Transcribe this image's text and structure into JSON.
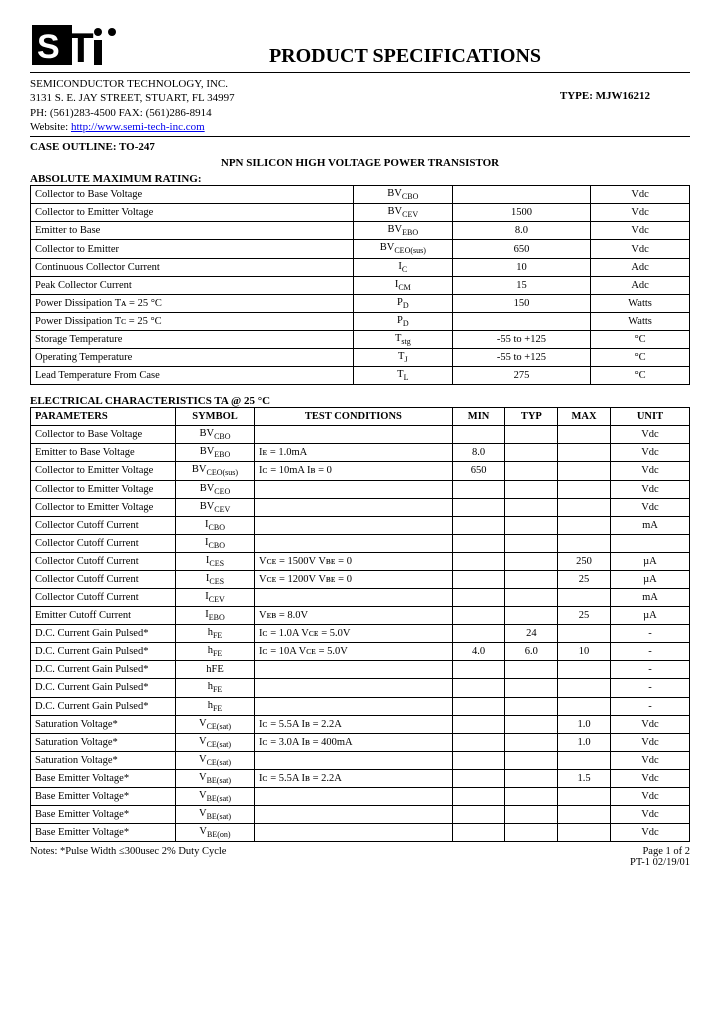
{
  "header": {
    "title": "PRODUCT SPECIFICATIONS",
    "company": "SEMICONDUCTOR TECHNOLOGY, INC.",
    "address": "3131 S. E. JAY STREET, STUART, FL  34997",
    "phone": "PH: (561)283-4500  FAX: (561)286-8914",
    "website_label": "Website:  ",
    "website_url": "http://www.semi-tech-inc.com",
    "type_label": "TYPE: ",
    "type_value": "MJW16212"
  },
  "case_outline_label": "CASE OUTLINE:   TO-247",
  "subtitle": "NPN SILICON HIGH VOLTAGE POWER TRANSISTOR",
  "amr": {
    "heading": "ABSOLUTE MAXIMUM RATING:",
    "rows": [
      {
        "p": "Collector to Base Voltage",
        "s": "BV",
        "sub": "CBO",
        "v": "",
        "u": "Vdc"
      },
      {
        "p": "Collector to Emitter Voltage",
        "s": "BV",
        "sub": "CEV",
        "v": "1500",
        "u": "Vdc"
      },
      {
        "p": "Emitter to Base",
        "s": "BV",
        "sub": "EBO",
        "v": "8.0",
        "u": "Vdc"
      },
      {
        "p": "Collector to Emitter",
        "s": "BV",
        "sub": "CEO(sus)",
        "v": "650",
        "u": "Vdc"
      },
      {
        "p": "Continuous Collector Current",
        "s": "I",
        "sub": "C",
        "v": "10",
        "u": "Adc"
      },
      {
        "p": "Peak Collector Current",
        "s": "I",
        "sub": "CM",
        "v": "15",
        "u": "Adc"
      },
      {
        "p": "Power Dissipation Tᴀ = 25 °C",
        "s": "P",
        "sub": "D",
        "v": "150",
        "u": "Watts"
      },
      {
        "p": "Power Dissipation Tᴄ = 25 °C",
        "s": "P",
        "sub": "D",
        "v": "",
        "u": "Watts"
      },
      {
        "p": "Storage Temperature",
        "s": "T",
        "sub": "stg",
        "v": "-55 to +125",
        "u": "°C"
      },
      {
        "p": "Operating Temperature",
        "s": "T",
        "sub": "J",
        "v": "-55 to +125",
        "u": "°C"
      },
      {
        "p": "Lead Temperature From Case",
        "s": "T",
        "sub": "L",
        "v": "275",
        "u": "°C"
      }
    ]
  },
  "ec": {
    "heading": "ELECTRICAL CHARACTERISTICS     TA @ 25 °C",
    "headers": [
      "PARAMETERS",
      "SYMBOL",
      "TEST CONDITIONS",
      "MIN",
      "TYP",
      "MAX",
      "UNIT"
    ],
    "rows": [
      {
        "p": "Collector to Base Voltage",
        "s": "BV",
        "sub": "CBO",
        "tc": "",
        "min": "",
        "typ": "",
        "max": "",
        "u": "Vdc"
      },
      {
        "p": "Emitter to Base Voltage",
        "s": "BV",
        "sub": "EBO",
        "tc": "Iᴇ = 1.0mA",
        "min": "8.0",
        "typ": "",
        "max": "",
        "u": "Vdc"
      },
      {
        "p": "Collector to Emitter Voltage",
        "s": "BV",
        "sub": "CEO(sus)",
        "tc": "Iᴄ = 10mA  Iʙ = 0",
        "min": "650",
        "typ": "",
        "max": "",
        "u": "Vdc"
      },
      {
        "p": "Collector to Emitter Voltage",
        "s": "BV",
        "sub": "CEO",
        "tc": "",
        "min": "",
        "typ": "",
        "max": "",
        "u": "Vdc"
      },
      {
        "p": "Collector to Emitter Voltage",
        "s": "BV",
        "sub": "CEV",
        "tc": "",
        "min": "",
        "typ": "",
        "max": "",
        "u": "Vdc"
      },
      {
        "p": "Collector Cutoff Current",
        "s": "I",
        "sub": "CBO",
        "tc": "",
        "min": "",
        "typ": "",
        "max": "",
        "u": "mA"
      },
      {
        "p": "Collector Cutoff Current",
        "s": "I",
        "sub": "CBO",
        "tc": "",
        "min": "",
        "typ": "",
        "max": "",
        "u": ""
      },
      {
        "p": "Collector Cutoff Current",
        "s": "I",
        "sub": "CES",
        "tc": "Vᴄᴇ = 1500V  Vʙᴇ = 0",
        "min": "",
        "typ": "",
        "max": "250",
        "u": "µA"
      },
      {
        "p": "Collector Cutoff Current",
        "s": "I",
        "sub": "CES",
        "tc": "Vᴄᴇ = 1200V  Vʙᴇ = 0",
        "min": "",
        "typ": "",
        "max": "25",
        "u": "µA"
      },
      {
        "p": "Collector Cutoff Current",
        "s": "I",
        "sub": "CEV",
        "tc": "",
        "min": "",
        "typ": "",
        "max": "",
        "u": "mA"
      },
      {
        "p": "Emitter Cutoff Current",
        "s": "I",
        "sub": "EBO",
        "tc": "Vᴇʙ = 8.0V",
        "min": "",
        "typ": "",
        "max": "25",
        "u": "µA"
      },
      {
        "p": "D.C. Current Gain Pulsed*",
        "s": "h",
        "sub": "FE",
        "tc": "Iᴄ = 1.0A  Vᴄᴇ = 5.0V",
        "min": "",
        "typ": "24",
        "max": "",
        "u": "-"
      },
      {
        "p": "D.C. Current Gain Pulsed*",
        "s": "h",
        "sub": "FE",
        "tc": "Iᴄ = 10A  Vᴄᴇ = 5.0V",
        "min": "4.0",
        "typ": "6.0",
        "max": "10",
        "u": "-"
      },
      {
        "p": "D.C. Current Gain Pulsed*",
        "s": "hFE",
        "sub": "",
        "tc": "",
        "min": "",
        "typ": "",
        "max": "",
        "u": "-"
      },
      {
        "p": "D.C. Current Gain Pulsed*",
        "s": "h",
        "sub": "FE",
        "tc": "",
        "min": "",
        "typ": "",
        "max": "",
        "u": "-"
      },
      {
        "p": "D.C. Current Gain Pulsed*",
        "s": "h",
        "sub": "FE",
        "tc": "",
        "min": "",
        "typ": "",
        "max": "",
        "u": "-"
      },
      {
        "p": "Saturation Voltage*",
        "s": "V",
        "sub": "CE(sat)",
        "tc": "Iᴄ = 5.5A Iʙ = 2.2A",
        "min": "",
        "typ": "",
        "max": "1.0",
        "u": "Vdc"
      },
      {
        "p": "Saturation Voltage*",
        "s": "V",
        "sub": "CE(sat)",
        "tc": "Iᴄ = 3.0A Iʙ = 400mA",
        "min": "",
        "typ": "",
        "max": "1.0",
        "u": "Vdc"
      },
      {
        "p": "Saturation Voltage*",
        "s": "V",
        "sub": "CE(sat)",
        "tc": "",
        "min": "",
        "typ": "",
        "max": "",
        "u": "Vdc"
      },
      {
        "p": "Base Emitter Voltage*",
        "s": "V",
        "sub": "BE(sat)",
        "tc": "Iᴄ = 5.5A Iʙ = 2.2A",
        "min": "",
        "typ": "",
        "max": "1.5",
        "u": "Vdc"
      },
      {
        "p": "Base Emitter Voltage*",
        "s": "V",
        "sub": "BE(sat)",
        "tc": "",
        "min": "",
        "typ": "",
        "max": "",
        "u": "Vdc"
      },
      {
        "p": "Base Emitter Voltage*",
        "s": "V",
        "sub": "BE(sat)",
        "tc": "",
        "min": "",
        "typ": "",
        "max": "",
        "u": "Vdc"
      },
      {
        "p": "Base Emitter Voltage*",
        "s": "V",
        "sub": "BE(on)",
        "tc": "",
        "min": "",
        "typ": "",
        "max": "",
        "u": "Vdc"
      }
    ]
  },
  "footer": {
    "notes": "Notes:  *Pulse Width  ≤300usec 2% Duty Cycle",
    "page": "Page 1 of 2",
    "rev": "PT-1  02/19/01"
  }
}
